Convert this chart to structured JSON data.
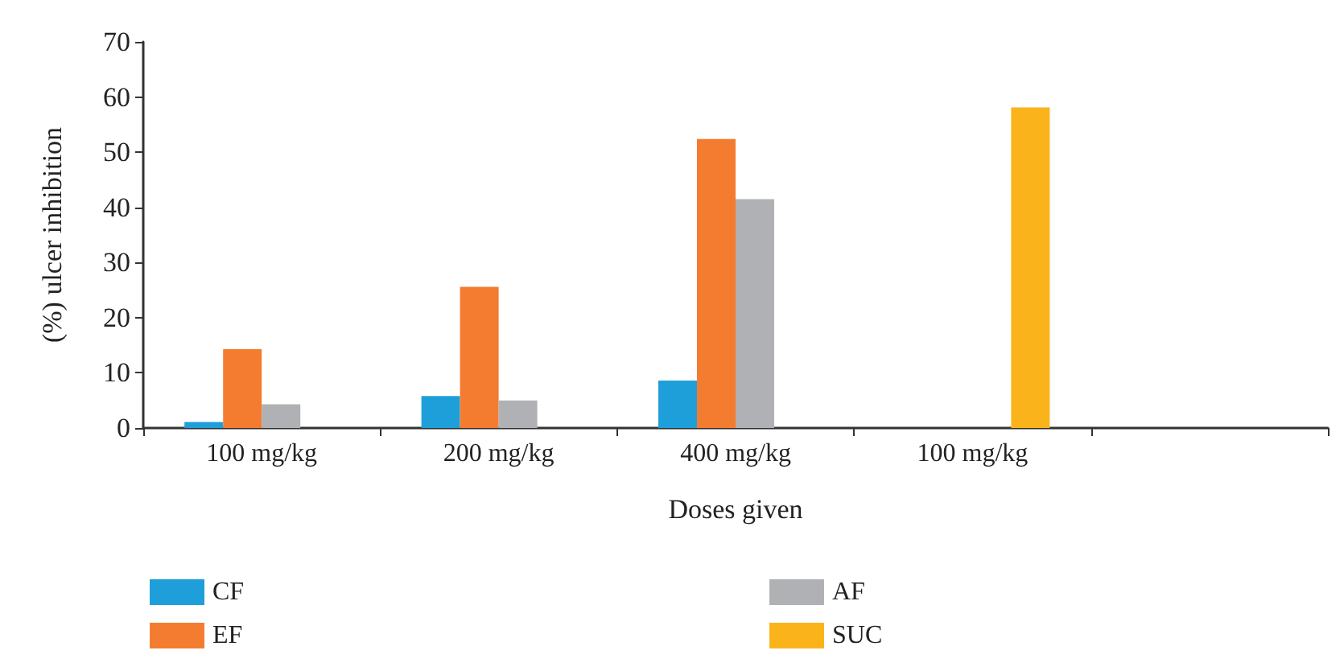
{
  "chart_data": {
    "type": "bar",
    "xlabel": "Doses given",
    "ylabel": "(%) ulcer inhibition",
    "categories": [
      "100 mg/kg",
      "200 mg/kg",
      "400 mg/kg",
      "100 mg/kg",
      null
    ],
    "series": [
      {
        "name": "CF",
        "color": "#1e9fd9",
        "values": [
          1.1,
          5.8,
          8.6,
          null,
          null
        ]
      },
      {
        "name": "EF",
        "color": "#f47c30",
        "values": [
          14.3,
          25.6,
          52.4,
          null,
          null
        ]
      },
      {
        "name": "AF",
        "color": "#b0b1b5",
        "values": [
          4.3,
          5.0,
          41.5,
          null,
          null
        ]
      },
      {
        "name": "SUC",
        "color": "#fbb31c",
        "values": [
          null,
          null,
          null,
          58.1,
          null
        ]
      }
    ],
    "ylim": [
      0,
      70
    ],
    "yticks": [
      0,
      10,
      20,
      30,
      40,
      50,
      60,
      70
    ],
    "grid": false,
    "legend": "bottom"
  }
}
